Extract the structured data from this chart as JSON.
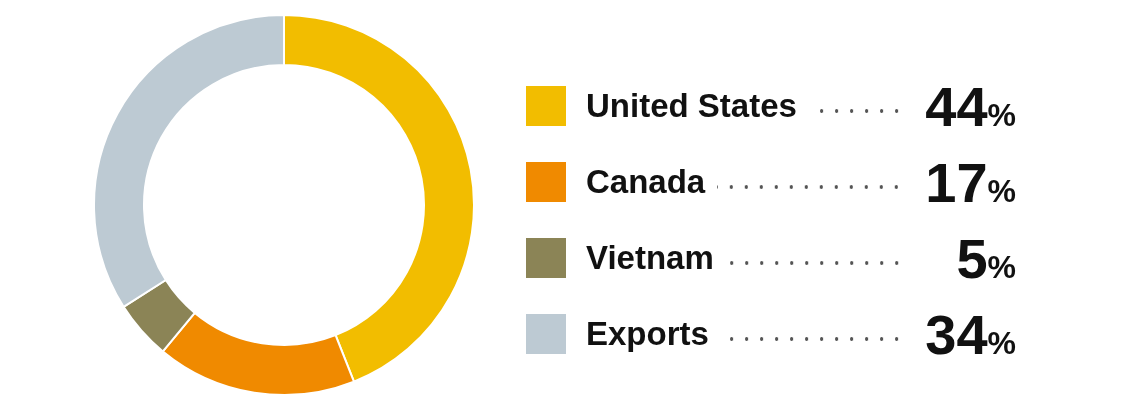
{
  "chart_data": {
    "type": "donut",
    "categories": [
      "United States",
      "Canada",
      "Vietnam",
      "Exports"
    ],
    "values": [
      44,
      17,
      5,
      34
    ],
    "colors": [
      "#f2bd00",
      "#f08a00",
      "#8b8456",
      "#bdcad3"
    ],
    "legend": "right",
    "value_labels": [
      "44%",
      "17%",
      "5%",
      "34%"
    ]
  }
}
